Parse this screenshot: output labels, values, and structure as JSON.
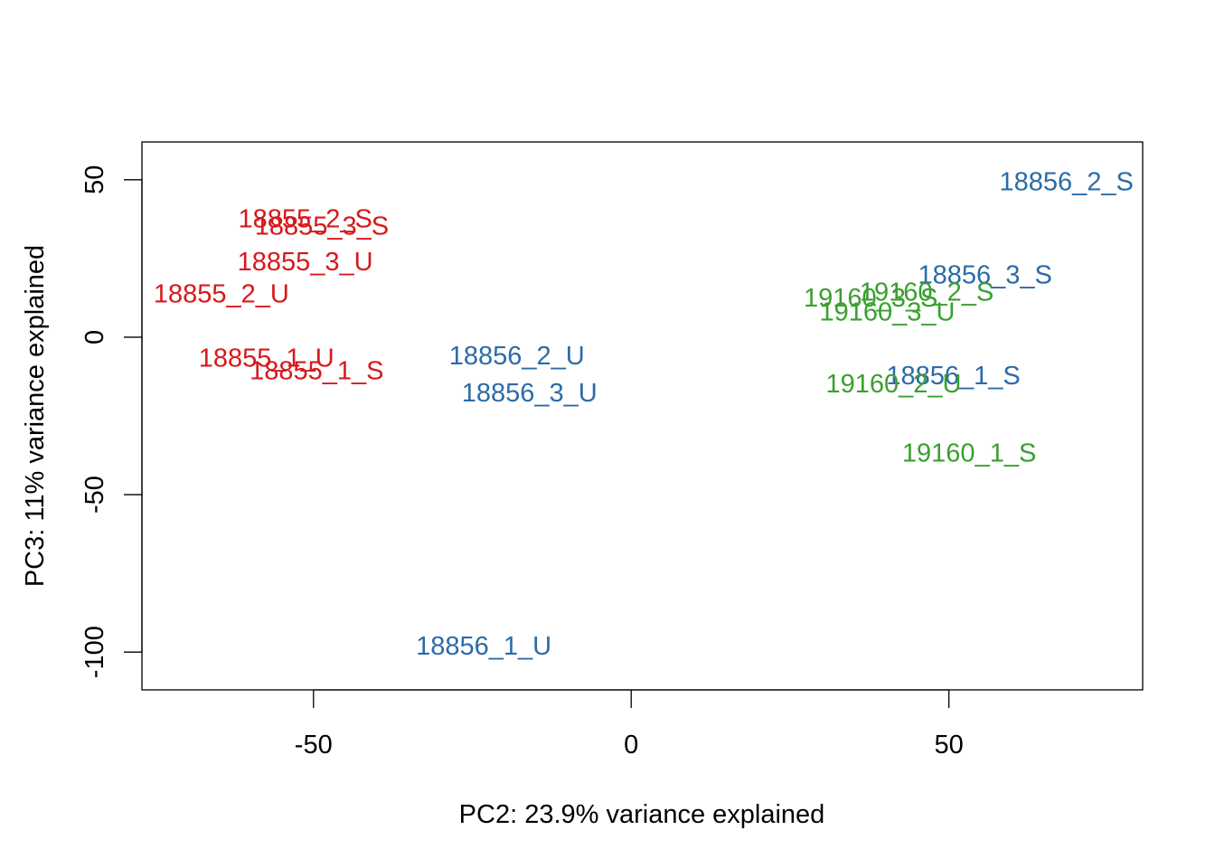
{
  "chart_data": {
    "type": "scatter",
    "title": "",
    "xlabel": "PC2: 23.9% variance explained",
    "ylabel": "PC3: 11% variance explained",
    "xlim": [
      -77,
      80.5
    ],
    "ylim": [
      -112,
      62
    ],
    "x_ticks": [
      -50,
      0,
      50
    ],
    "x_tick_labels": [
      "-50",
      "0",
      "50"
    ],
    "y_ticks": [
      -100,
      -50,
      0,
      50
    ],
    "y_tick_labels": [
      "-100",
      "-50",
      "0",
      "50"
    ],
    "grid": false,
    "legend": "none",
    "colors": {
      "18855": "#d7191c",
      "18856": "#2c6ba8",
      "19160": "#3aa02e"
    },
    "points": [
      {
        "label": "18855_2_S",
        "group": "18855",
        "x": -51.3,
        "y": 37.5
      },
      {
        "label": "18855_3_S",
        "group": "18855",
        "x": -48.7,
        "y": 35.2
      },
      {
        "label": "18855_3_U",
        "group": "18855",
        "x": -51.3,
        "y": 23.8
      },
      {
        "label": "18855_2_U",
        "group": "18855",
        "x": -64.5,
        "y": 13.6
      },
      {
        "label": "18855_1_U",
        "group": "18855",
        "x": -57.4,
        "y": -6.8
      },
      {
        "label": "18855_1_S",
        "group": "18855",
        "x": -49.5,
        "y": -10.8
      },
      {
        "label": "18856_2_U",
        "group": "18856",
        "x": -18.0,
        "y": -6.0
      },
      {
        "label": "18856_3_U",
        "group": "18856",
        "x": -16.0,
        "y": -17.8
      },
      {
        "label": "18856_1_U",
        "group": "18856",
        "x": -23.2,
        "y": -98.2
      },
      {
        "label": "18856_2_S",
        "group": "18856",
        "x": 68.5,
        "y": 49.2
      },
      {
        "label": "18856_3_S",
        "group": "18856",
        "x": 55.7,
        "y": 19.7
      },
      {
        "label": "18856_1_S",
        "group": "18856",
        "x": 50.7,
        "y": -12.4
      },
      {
        "label": "19160_2_S",
        "group": "19160",
        "x": 46.5,
        "y": 14.2
      },
      {
        "label": "19160_3_S",
        "group": "19160",
        "x": 37.7,
        "y": 12.3
      },
      {
        "label": "19160_3_U",
        "group": "19160",
        "x": 40.3,
        "y": 7.9
      },
      {
        "label": "19160_2_U",
        "group": "19160",
        "x": 41.3,
        "y": -15.0
      },
      {
        "label": "19160_1_S",
        "group": "19160",
        "x": 53.2,
        "y": -36.9
      }
    ]
  }
}
